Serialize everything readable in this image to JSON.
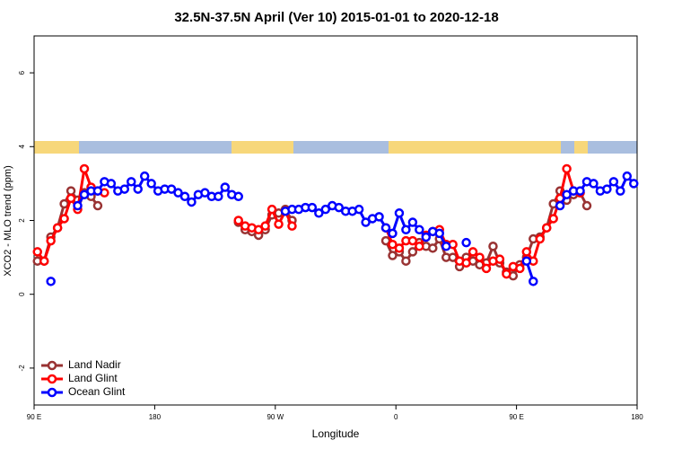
{
  "chart_data": {
    "type": "line",
    "title": "32.5N-37.5N April (Ver 10)   2015-01-01 to 2020-12-18",
    "x_label": "Longitude",
    "y_label": "XCO2 - MLO trend (ppm)",
    "x": [
      92.5,
      97.5,
      102.5,
      107.5,
      112.5,
      117.5,
      122.5,
      127.5,
      132.5,
      137.5,
      142.5,
      147.5,
      152.5,
      157.5,
      162.5,
      167.5,
      172.5,
      177.5,
      182.5,
      187.5,
      192.5,
      197.5,
      202.5,
      207.5,
      212.5,
      217.5,
      222.5,
      227.5,
      232.5,
      237.5,
      242.5,
      247.5,
      252.5,
      257.5,
      262.5,
      267.5,
      272.5,
      277.5,
      282.5,
      287.5,
      292.5,
      297.5,
      302.5,
      307.5,
      312.5,
      317.5,
      322.5,
      327.5,
      332.5,
      337.5,
      342.5,
      347.5,
      352.5,
      357.5,
      362.5,
      367.5,
      372.5,
      377.5,
      382.5,
      387.5,
      392.5,
      397.5,
      402.5,
      407.5,
      412.5,
      417.5,
      422.5,
      427.5,
      432.5,
      437.5,
      442.5,
      447.5,
      452.5,
      457.5,
      462.5,
      467.5,
      472.5,
      477.5,
      482.5,
      487.5,
      492.5,
      497.5,
      502.5,
      507.5,
      512.5,
      517.5,
      522.5,
      527.5,
      532.5,
      537.5
    ],
    "xlim": [
      90,
      540
    ],
    "xticks": [
      {
        "value": 90,
        "label": "90 E"
      },
      180,
      {
        "value": 270,
        "label": "90 W"
      },
      {
        "value": 360,
        "label": "0"
      },
      {
        "value": 450,
        "label": "90 E"
      },
      {
        "value": 540,
        "label": "180"
      }
    ],
    "ylim": [
      -3,
      7
    ],
    "yticks": [
      -2,
      0,
      2,
      4,
      6
    ],
    "grid": false,
    "legend": "bottomleft",
    "series": [
      {
        "name": "Land Nadir",
        "color": "#993333",
        "values": [
          0.9,
          0.9,
          1.55,
          1.8,
          2.45,
          2.8,
          2.55,
          2.75,
          2.65,
          2.4,
          null,
          null,
          null,
          null,
          null,
          null,
          null,
          null,
          null,
          null,
          null,
          null,
          null,
          null,
          null,
          null,
          null,
          null,
          null,
          null,
          1.95,
          1.75,
          1.7,
          1.6,
          1.75,
          2.15,
          2.2,
          2.3,
          2.0,
          null,
          null,
          null,
          null,
          null,
          null,
          null,
          null,
          null,
          null,
          null,
          null,
          null,
          1.45,
          1.05,
          1.15,
          0.9,
          1.15,
          1.4,
          1.3,
          1.25,
          1.5,
          1.0,
          1.0,
          0.75,
          1.0,
          0.9,
          0.8,
          0.85,
          1.3,
          0.85,
          0.6,
          0.5,
          0.8,
          1.0,
          1.5,
          1.55,
          1.8,
          2.45,
          2.8,
          2.55,
          2.7,
          2.75,
          2.4,
          null,
          null,
          null,
          null,
          null,
          null,
          null
        ]
      },
      {
        "name": "Land Glint",
        "color": "#ff0000",
        "values": [
          1.15,
          0.9,
          1.45,
          1.8,
          2.05,
          2.6,
          2.3,
          3.4,
          2.9,
          2.8,
          2.75,
          null,
          null,
          null,
          null,
          null,
          null,
          null,
          null,
          null,
          null,
          null,
          null,
          null,
          null,
          null,
          null,
          null,
          null,
          null,
          2.0,
          1.85,
          1.8,
          1.75,
          1.85,
          2.3,
          1.9,
          2.25,
          1.85,
          null,
          null,
          null,
          null,
          null,
          null,
          null,
          null,
          null,
          null,
          null,
          null,
          null,
          1.8,
          1.35,
          1.25,
          1.45,
          1.45,
          1.3,
          1.6,
          1.7,
          1.75,
          1.35,
          1.35,
          0.9,
          0.85,
          1.15,
          1.0,
          0.7,
          0.9,
          0.95,
          0.55,
          0.75,
          0.7,
          1.15,
          0.9,
          1.5,
          1.8,
          2.05,
          2.6,
          3.4,
          2.8,
          2.75,
          null,
          null,
          null,
          null,
          null,
          null,
          null,
          null
        ]
      },
      {
        "name": "Ocean Glint",
        "color": "#0000ff",
        "values": [
          null,
          null,
          0.35,
          null,
          null,
          null,
          2.4,
          2.7,
          2.8,
          2.8,
          3.05,
          3.0,
          2.8,
          2.85,
          3.05,
          2.85,
          3.2,
          3.0,
          2.8,
          2.85,
          2.85,
          2.75,
          2.65,
          2.5,
          2.7,
          2.75,
          2.65,
          2.65,
          2.9,
          2.7,
          2.65,
          null,
          null,
          null,
          null,
          null,
          null,
          2.25,
          2.3,
          2.3,
          2.35,
          2.35,
          2.2,
          2.3,
          2.4,
          2.35,
          2.25,
          2.25,
          2.3,
          1.95,
          2.05,
          2.1,
          1.8,
          1.65,
          2.2,
          1.75,
          1.95,
          1.75,
          1.55,
          1.7,
          1.65,
          1.3,
          null,
          null,
          1.4,
          null,
          null,
          null,
          null,
          null,
          null,
          null,
          null,
          0.9,
          0.35,
          null,
          null,
          null,
          2.4,
          2.7,
          2.8,
          2.8,
          3.05,
          3.0,
          2.8,
          2.85,
          3.05,
          2.8,
          3.2,
          3.0
        ]
      }
    ]
  }
}
